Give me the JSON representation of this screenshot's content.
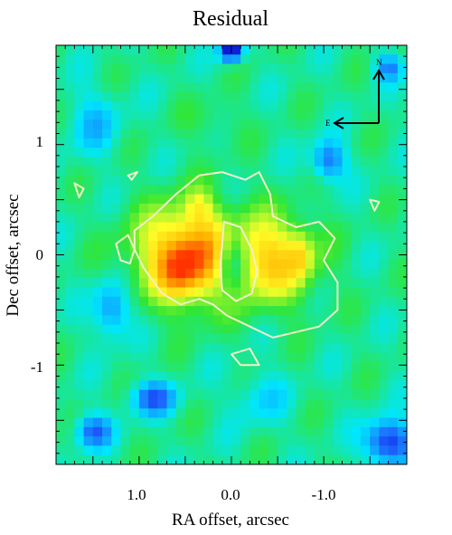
{
  "chart_data": {
    "type": "heatmap",
    "title": "Residual",
    "xlabel": "RA offset, arcsec",
    "ylabel": "Dec offset, arcsec",
    "xlim": [
      1.9,
      -1.9
    ],
    "ylim": [
      -1.9,
      1.9
    ],
    "x_ticks": [
      {
        "value": 1.0,
        "label": "1.0"
      },
      {
        "value": 0.0,
        "label": "0.0"
      },
      {
        "value": -1.0,
        "label": "-1.0"
      }
    ],
    "y_ticks": [
      {
        "value": 1,
        "label": "1"
      },
      {
        "value": 0,
        "label": "0"
      },
      {
        "value": -1,
        "label": "-1"
      }
    ],
    "colormap": [
      "#0000c8",
      "#1e64ff",
      "#00e6ff",
      "#32e632",
      "#ffff28",
      "#ffb400",
      "#ff3200"
    ],
    "compass": {
      "north_label": "N",
      "east_label": "E"
    },
    "contour_color": "#f0f0c8"
  }
}
